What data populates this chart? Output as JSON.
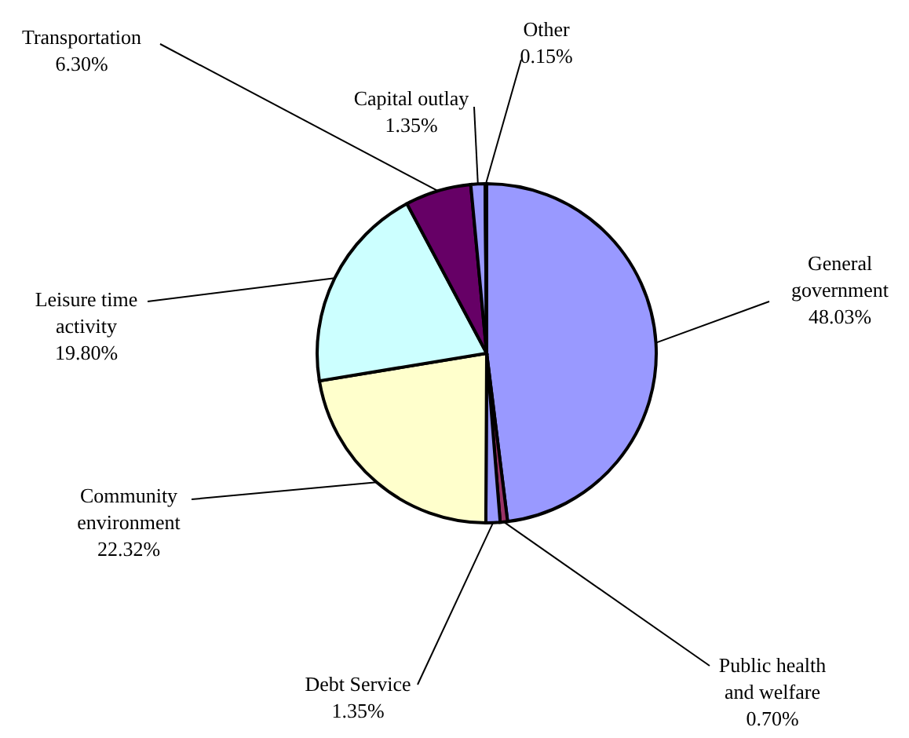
{
  "chart_data": {
    "type": "pie",
    "categories": [
      "General\ngovernment",
      "Public health\nand welfare",
      "Debt Service",
      "Community\nenvironment",
      "Leisure time\nactivity",
      "Transportation",
      "Capital outlay",
      "Other"
    ],
    "values": [
      48.03,
      0.7,
      1.35,
      22.32,
      19.8,
      6.3,
      1.35,
      0.15
    ],
    "value_labels": [
      "48.03%",
      "0.70%",
      "1.35%",
      "22.32%",
      "19.80%",
      "6.30%",
      "1.35%",
      "0.15%"
    ],
    "colors": [
      "#9999ff",
      "#993366",
      "#9999ff",
      "#ffffcc",
      "#ccffff",
      "#660066",
      "#9999ff",
      "#000080"
    ]
  }
}
